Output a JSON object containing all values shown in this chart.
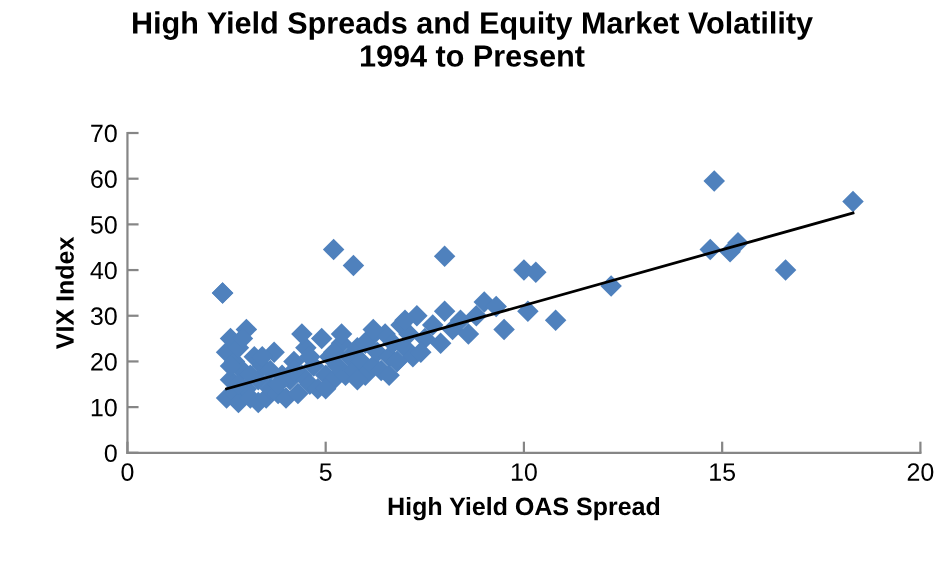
{
  "chart_data": {
    "type": "scatter",
    "title": "High Yield Spreads and Equity Market Volatility\n1994 to Present",
    "xlabel": "High Yield OAS Spread",
    "ylabel": "VIX Index",
    "xlim": [
      0,
      20
    ],
    "xticks": [
      0,
      5,
      10,
      15,
      20
    ],
    "ylim": [
      0,
      70
    ],
    "yticks": [
      0,
      10,
      20,
      30,
      40,
      50,
      60,
      70
    ],
    "grid": false,
    "legend": false,
    "series": [
      {
        "marker": "diamond",
        "color": "#4f81bd",
        "x": [
          2.4,
          2.5,
          2.5,
          2.6,
          2.6,
          2.7,
          2.7,
          2.8,
          2.8,
          2.9,
          3.0,
          3.0,
          3.1,
          3.2,
          3.3,
          3.3,
          3.4,
          3.5,
          3.6,
          3.7,
          3.8,
          3.9,
          4.0,
          4.1,
          4.2,
          4.3,
          4.4,
          4.5,
          4.6,
          4.7,
          4.8,
          4.9,
          5.0,
          5.1,
          5.2,
          5.3,
          5.4,
          5.5,
          5.6,
          5.7,
          5.8,
          5.9,
          6.0,
          6.1,
          6.2,
          6.3,
          6.4,
          6.5,
          6.6,
          6.7,
          6.8,
          6.9,
          7.0,
          7.1,
          7.2,
          7.3,
          7.5,
          7.7,
          7.9,
          8.0,
          8.2,
          8.4,
          8.6,
          8.8,
          9.0,
          2.6,
          2.8,
          3.1,
          3.4,
          3.8,
          4.2,
          4.6,
          5.0,
          5.4,
          5.8,
          6.2,
          6.6,
          7.0,
          7.4,
          2.9,
          3.6,
          4.4,
          5.2,
          6.0,
          6.8,
          2.4,
          5.2,
          5.7,
          8.0,
          9.3,
          9.5,
          10.0,
          10.1,
          10.3,
          10.8,
          12.2,
          14.7,
          14.8,
          15.2,
          15.4,
          16.6,
          18.3
        ],
        "values": [
          35,
          22,
          12,
          25,
          16,
          20,
          13,
          23,
          11,
          18,
          14,
          27,
          12,
          21,
          11,
          16,
          19,
          12,
          14,
          22,
          13,
          17,
          12,
          16,
          20,
          13,
          17,
          23,
          15,
          19,
          14,
          25,
          17,
          21,
          16,
          19,
          24,
          17,
          21,
          18,
          23,
          20,
          17,
          25,
          19,
          22,
          18,
          26,
          21,
          24,
          20,
          28,
          23,
          26,
          21,
          30,
          25,
          28,
          24,
          31,
          27,
          29,
          26,
          30,
          33,
          19,
          15,
          17,
          21,
          15,
          18,
          21,
          14,
          26,
          16,
          27,
          17,
          29,
          22,
          25,
          18,
          26,
          22,
          24,
          20,
          35,
          44.5,
          41,
          43,
          32,
          27,
          40,
          31,
          39.5,
          29,
          36.5,
          44.5,
          59.5,
          44,
          46,
          40,
          55
        ]
      },
      {
        "type": "line",
        "marker": "none",
        "color": "#000000",
        "x": [
          2.5,
          18.3
        ],
        "values": [
          14,
          52.5
        ]
      }
    ]
  }
}
